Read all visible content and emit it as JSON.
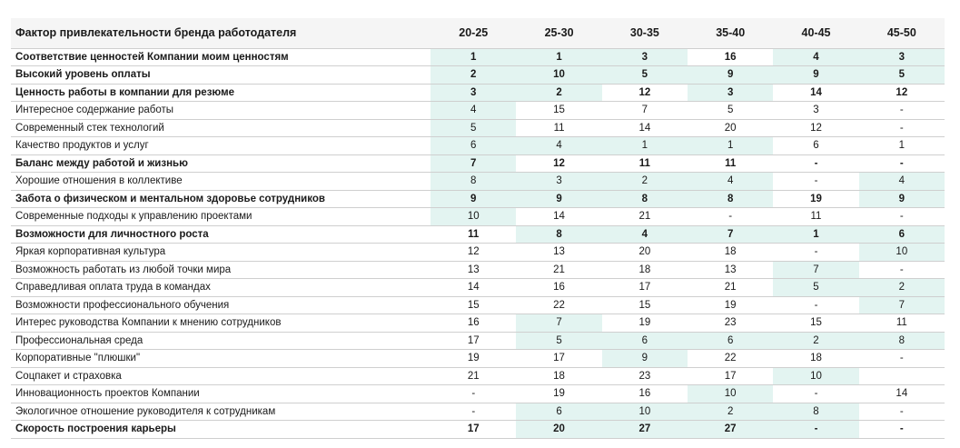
{
  "table": {
    "header": {
      "factor": "Фактор привлекательности бренда работодателя",
      "ages": [
        "20-25",
        "25-30",
        "30-35",
        "35-40",
        "40-45",
        "45-50"
      ]
    },
    "highlight_color": "#e3f4f1",
    "rows": [
      {
        "label": "Соответствие ценностей Компании моим ценностям",
        "bold": true,
        "values": [
          "1",
          "1",
          "3",
          "16",
          "4",
          "3"
        ],
        "hl": [
          true,
          true,
          true,
          false,
          true,
          true
        ]
      },
      {
        "label": "Высокий уровень оплаты",
        "bold": true,
        "values": [
          "2",
          "10",
          "5",
          "9",
          "9",
          "5"
        ],
        "hl": [
          true,
          true,
          true,
          true,
          true,
          true
        ]
      },
      {
        "label": "Ценность работы в компании для резюме",
        "bold": true,
        "values": [
          "3",
          "2",
          "12",
          "3",
          "14",
          "12"
        ],
        "hl": [
          true,
          true,
          false,
          true,
          false,
          false
        ]
      },
      {
        "label": "Интересное содержание работы",
        "bold": false,
        "values": [
          "4",
          "15",
          "7",
          "5",
          "3",
          "-"
        ],
        "hl": [
          true,
          false,
          false,
          false,
          false,
          false
        ]
      },
      {
        "label": "Современный стек технологий",
        "bold": false,
        "values": [
          "5",
          "11",
          "14",
          "20",
          "12",
          "-"
        ],
        "hl": [
          true,
          false,
          false,
          false,
          false,
          false
        ]
      },
      {
        "label": "Качество продуктов и услуг",
        "bold": false,
        "values": [
          "6",
          "4",
          "1",
          "1",
          "6",
          "1"
        ],
        "hl": [
          true,
          true,
          true,
          true,
          false,
          false
        ]
      },
      {
        "label": "Баланс между работой и жизнью",
        "bold": true,
        "values": [
          "7",
          "12",
          "11",
          "11",
          "-",
          "-"
        ],
        "hl": [
          true,
          false,
          false,
          false,
          false,
          false
        ]
      },
      {
        "label": "Хорошие отношения в коллективе",
        "bold": false,
        "values": [
          "8",
          "3",
          "2",
          "4",
          "-",
          "4"
        ],
        "hl": [
          true,
          true,
          true,
          true,
          false,
          true
        ]
      },
      {
        "label": "Забота о физическом и ментальном здоровье сотрудников",
        "bold": true,
        "values": [
          "9",
          "9",
          "8",
          "8",
          "19",
          "9"
        ],
        "hl": [
          true,
          true,
          true,
          true,
          false,
          true
        ]
      },
      {
        "label": "Современные подходы к управлению проектами",
        "bold": false,
        "values": [
          "10",
          "14",
          "21",
          "-",
          "11",
          "-"
        ],
        "hl": [
          true,
          false,
          false,
          false,
          false,
          false
        ]
      },
      {
        "label": "Возможности для личностного роста",
        "bold": true,
        "values": [
          "11",
          "8",
          "4",
          "7",
          "1",
          "6"
        ],
        "hl": [
          false,
          true,
          true,
          true,
          true,
          true
        ]
      },
      {
        "label": "Яркая корпоративная культура",
        "bold": false,
        "values": [
          "12",
          "13",
          "20",
          "18",
          "-",
          "10"
        ],
        "hl": [
          false,
          false,
          false,
          false,
          false,
          true
        ]
      },
      {
        "label": "Возможность работать из любой точки мира",
        "bold": false,
        "values": [
          "13",
          "21",
          "18",
          "13",
          "7",
          "-"
        ],
        "hl": [
          false,
          false,
          false,
          false,
          true,
          false
        ]
      },
      {
        "label": "Справедливая оплата труда в командах",
        "bold": false,
        "values": [
          "14",
          "16",
          "17",
          "21",
          "5",
          "2"
        ],
        "hl": [
          false,
          false,
          false,
          false,
          true,
          true
        ]
      },
      {
        "label": "Возможности профессионального обучения",
        "bold": false,
        "values": [
          "15",
          "22",
          "15",
          "19",
          "-",
          "7"
        ],
        "hl": [
          false,
          false,
          false,
          false,
          false,
          true
        ]
      },
      {
        "label": "Интерес руководства Компании к мнению сотрудников",
        "bold": false,
        "values": [
          "16",
          "7",
          "19",
          "23",
          "15",
          "11"
        ],
        "hl": [
          false,
          true,
          false,
          false,
          false,
          false
        ]
      },
      {
        "label": "Профессиональная среда",
        "bold": false,
        "values": [
          "17",
          "5",
          "6",
          "6",
          "2",
          "8"
        ],
        "hl": [
          false,
          true,
          true,
          true,
          true,
          true
        ]
      },
      {
        "label": "Корпоративные \"плюшки\"",
        "bold": false,
        "values": [
          "19",
          "17",
          "9",
          "22",
          "18",
          "-"
        ],
        "hl": [
          false,
          false,
          true,
          false,
          false,
          false
        ]
      },
      {
        "label": "Соцпакет и страховка",
        "bold": false,
        "values": [
          "21",
          "18",
          "23",
          "17",
          "10",
          ""
        ],
        "hl": [
          false,
          false,
          false,
          false,
          true,
          false
        ]
      },
      {
        "label": "Инновационность проектов Компании",
        "bold": false,
        "values": [
          "-",
          "19",
          "16",
          "10",
          "-",
          "14"
        ],
        "hl": [
          false,
          false,
          false,
          true,
          false,
          false
        ]
      },
      {
        "label": "Экологичное отношение руководителя к сотрудникам",
        "bold": false,
        "values": [
          "-",
          "6",
          "10",
          "2",
          "8",
          "-"
        ],
        "hl": [
          false,
          true,
          true,
          true,
          true,
          false
        ]
      },
      {
        "label": "Скорость построения карьеры",
        "bold": true,
        "values": [
          "17",
          "20",
          "27",
          "27",
          "-",
          "-"
        ],
        "hl": [
          false,
          true,
          true,
          true,
          true,
          false
        ]
      }
    ]
  }
}
